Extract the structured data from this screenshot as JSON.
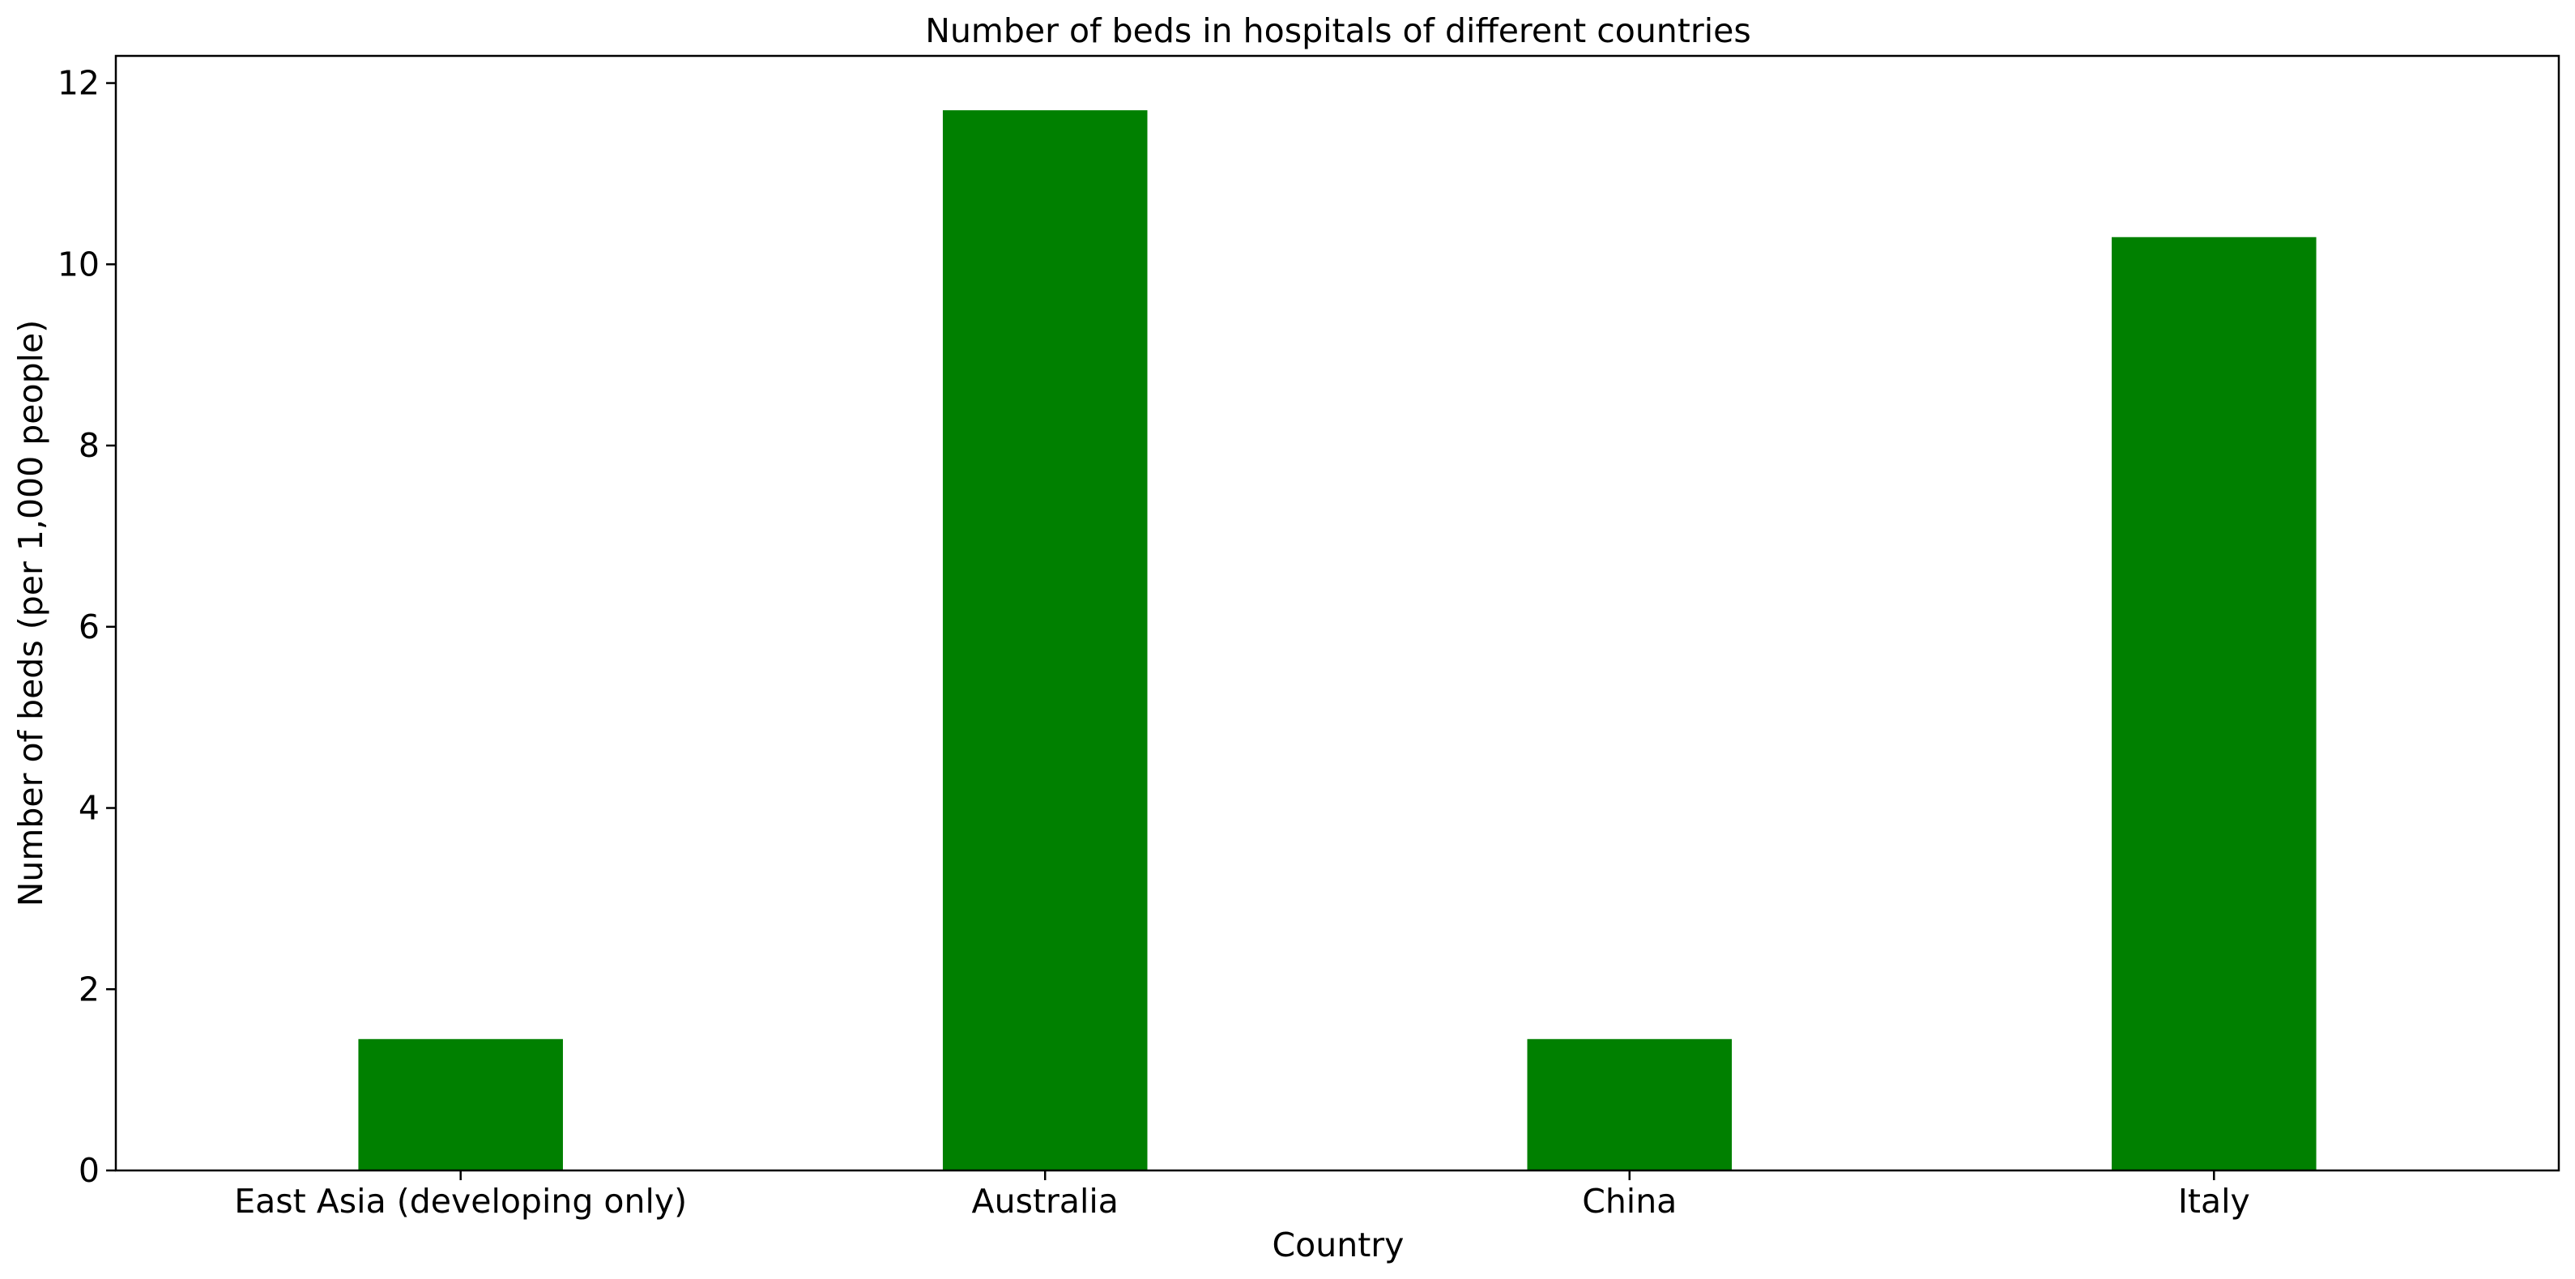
{
  "chart_data": {
    "type": "bar",
    "title": "Number of beds in hospitals of different countries",
    "xlabel": "Country",
    "ylabel": "Number of beds (per 1,000 people)",
    "categories": [
      "East Asia (developing only)",
      "Australia",
      "China",
      "Italy"
    ],
    "values": [
      1.45,
      11.7,
      1.45,
      10.3
    ],
    "ylim": [
      0,
      12.3
    ],
    "yticks": [
      0,
      2,
      4,
      6,
      8,
      10,
      12
    ],
    "ytick_labels": [
      "0",
      "2",
      "4",
      "6",
      "8",
      "10",
      "12"
    ],
    "bar_color": "#008000",
    "grid": false,
    "legend": "none"
  }
}
